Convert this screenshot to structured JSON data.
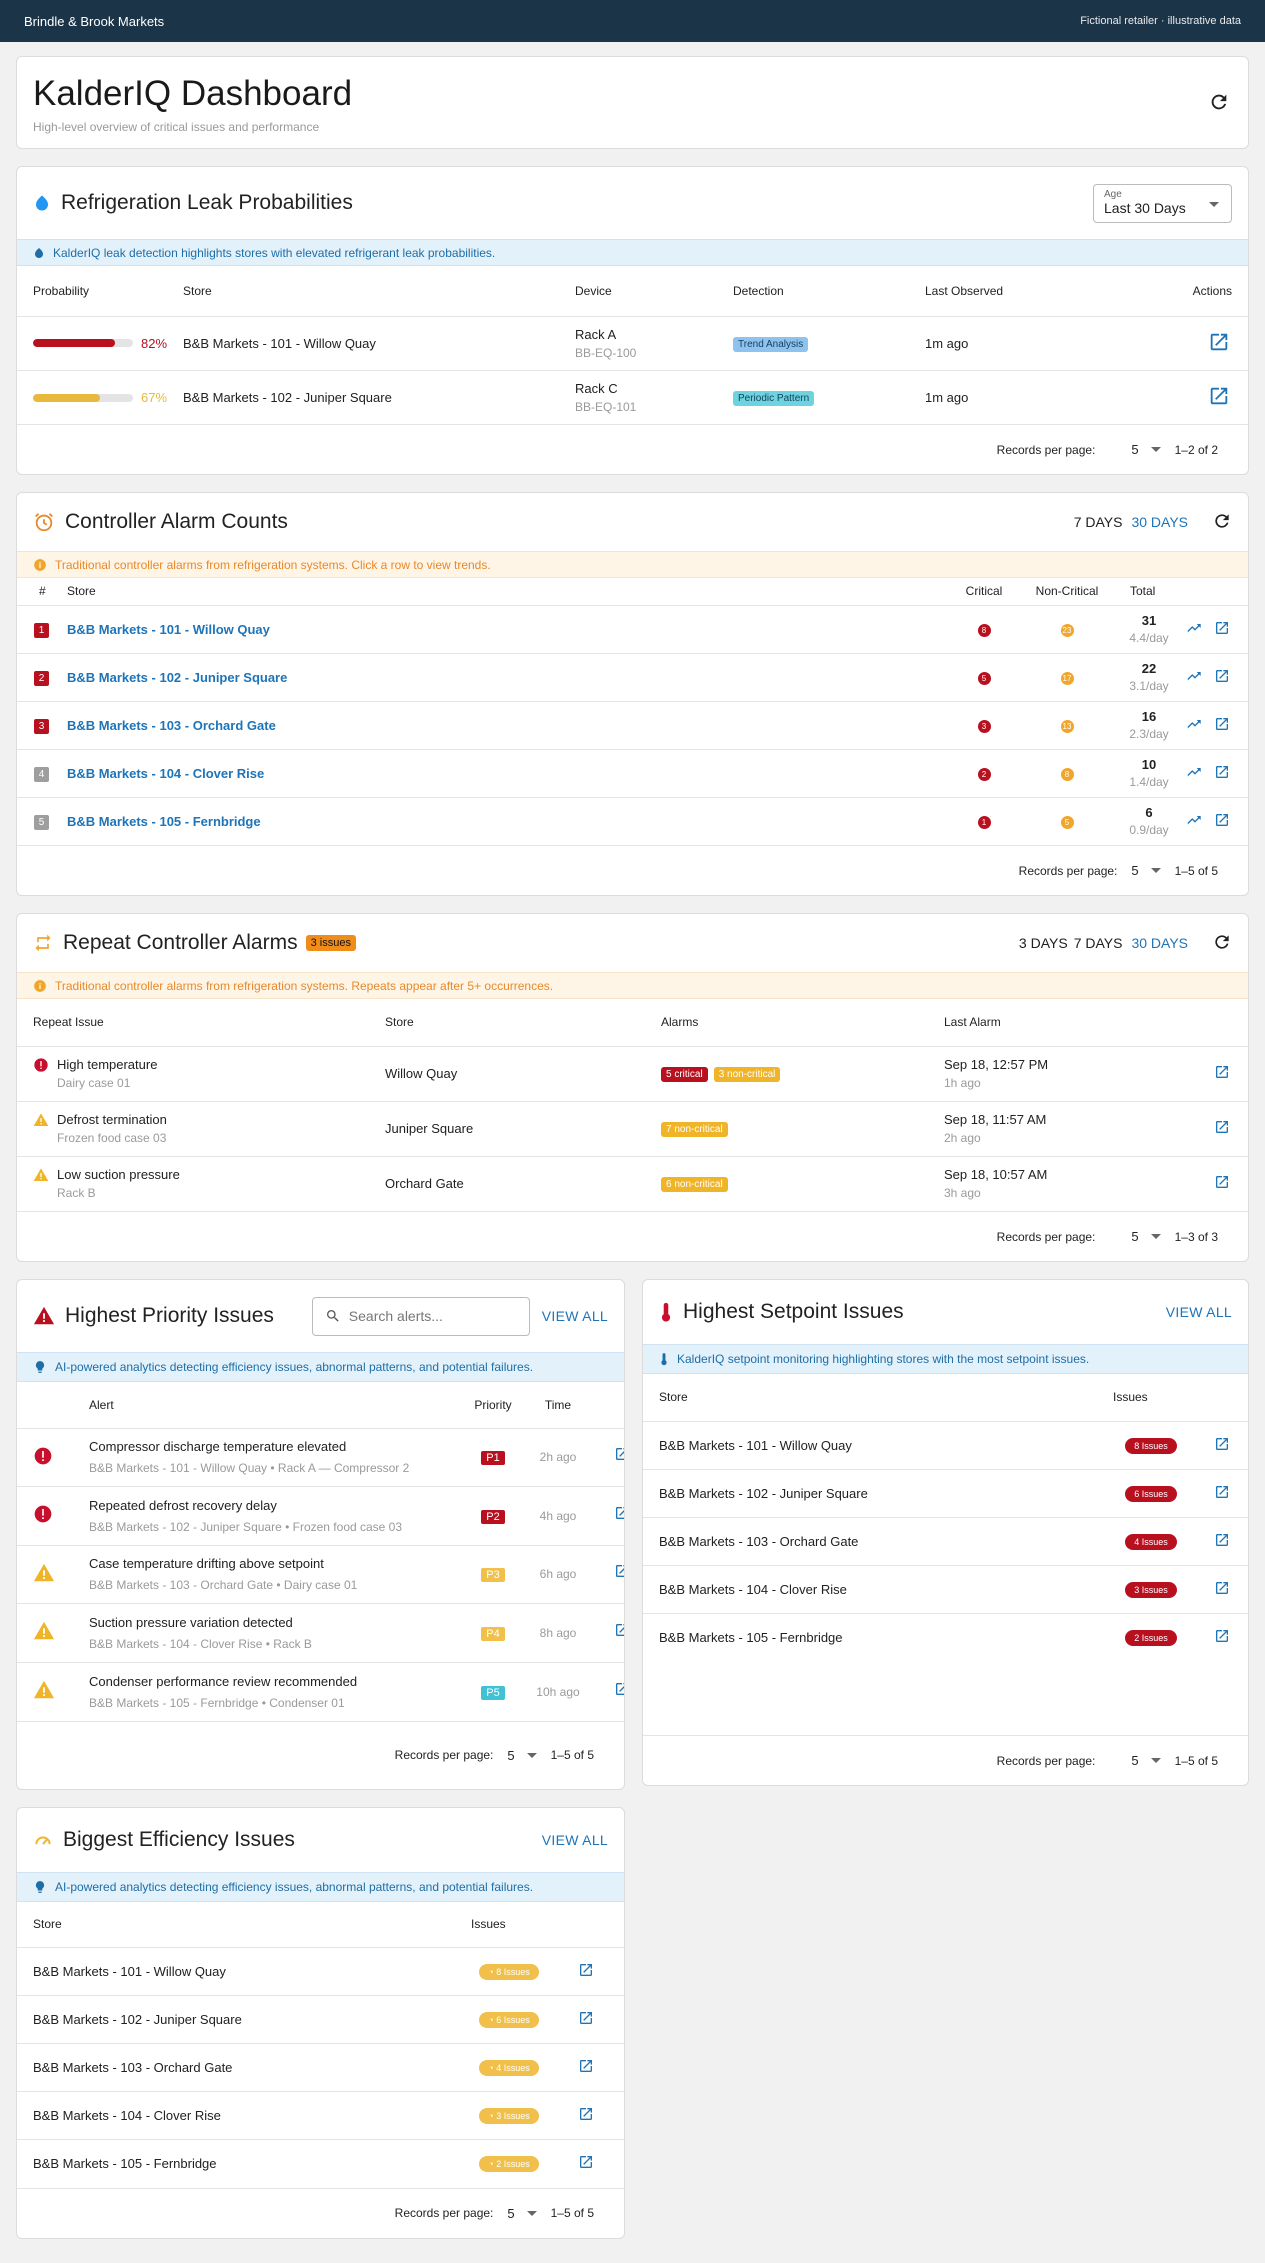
{
  "topbar": {
    "brand": "Brindle & Brook Markets",
    "note": "Fictional retailer · illustrative data"
  },
  "dashboard": {
    "title": "KalderIQ Dashboard",
    "subtitle": "High-level overview of critical issues and performance"
  },
  "leak": {
    "title": "Refrigeration Leak Probabilities",
    "age_label": "Age",
    "age_value": "Last 30 Days",
    "banner": "KalderIQ leak detection highlights stores with elevated refrigerant leak probabilities.",
    "headers": [
      "Probability",
      "Store",
      "Device",
      "Detection",
      "Last Observed",
      "Actions"
    ],
    "rows": [
      {
        "prob": "82%",
        "prob_value": 82,
        "color": "#b8101f",
        "store": "B&B Markets - 101 - Willow Quay",
        "device": "Rack A",
        "device_id": "BB-EQ-100",
        "detection": "Trend Analysis",
        "det_color": "#8dc3ee",
        "observed": "1m ago"
      },
      {
        "prob": "67%",
        "prob_value": 67,
        "color": "#e8b93d",
        "store": "B&B Markets - 102 - Juniper Square",
        "device": "Rack C",
        "device_id": "BB-EQ-101",
        "detection": "Periodic Pattern",
        "det_color": "#6dd3de",
        "observed": "1m ago"
      }
    ],
    "footer": {
      "label": "Records per page:",
      "per": "5",
      "range": "1–2 of 2"
    }
  },
  "alarm": {
    "title": "Controller Alarm Counts",
    "days7": "7 DAYS",
    "days30": "30 DAYS",
    "banner": "Traditional controller alarms from refrigeration systems. Click a row to view trends.",
    "headers": [
      "#",
      "Store",
      "Critical",
      "Non-Critical",
      "Total"
    ],
    "rows": [
      {
        "rank": "1",
        "rank_color": "#b8101f",
        "store": "B&B Markets - 101 - Willow Quay",
        "crit": "8",
        "noncrit": "23",
        "total": "31",
        "perday": "4.4/day"
      },
      {
        "rank": "2",
        "rank_color": "#b8101f",
        "store": "B&B Markets - 102 - Juniper Square",
        "crit": "5",
        "noncrit": "17",
        "total": "22",
        "perday": "3.1/day"
      },
      {
        "rank": "3",
        "rank_color": "#b8101f",
        "store": "B&B Markets - 103 - Orchard Gate",
        "crit": "3",
        "noncrit": "13",
        "total": "16",
        "perday": "2.3/day"
      },
      {
        "rank": "4",
        "rank_color": "#9e9e9e",
        "store": "B&B Markets - 104 - Clover Rise",
        "crit": "2",
        "noncrit": "8",
        "total": "10",
        "perday": "1.4/day"
      },
      {
        "rank": "5",
        "rank_color": "#9e9e9e",
        "store": "B&B Markets - 105 - Fernbridge",
        "crit": "1",
        "noncrit": "5",
        "total": "6",
        "perday": "0.9/day"
      }
    ],
    "footer": {
      "label": "Records per page:",
      "per": "5",
      "range": "1–5 of 5"
    }
  },
  "repeat": {
    "title": "Repeat Controller Alarms",
    "badge": "3 issues",
    "days3": "3 DAYS",
    "days7": "7 DAYS",
    "days30": "30 DAYS",
    "banner": "Traditional controller alarms from refrigeration systems. Repeats appear after 5+ occurrences.",
    "headers": [
      "Repeat Issue",
      "Store",
      "Alarms",
      "Last Alarm"
    ],
    "rows": [
      {
        "icon": "error",
        "issue": "High temperature",
        "sub": "Dairy case 01",
        "store": "Willow Quay",
        "tags": [
          {
            "t": "5 critical",
            "c": "#b8101f"
          },
          {
            "t": "3 non-critical",
            "c": "#f0b429"
          }
        ],
        "date": "Sep 18, 12:57 PM",
        "ago": "1h ago"
      },
      {
        "icon": "warn",
        "issue": "Defrost termination",
        "sub": "Frozen food case 03",
        "store": "Juniper Square",
        "tags": [
          {
            "t": "7 non-critical",
            "c": "#f0b429"
          }
        ],
        "date": "Sep 18, 11:57 AM",
        "ago": "2h ago"
      },
      {
        "icon": "warn",
        "issue": "Low suction pressure",
        "sub": "Rack B",
        "store": "Orchard Gate",
        "tags": [
          {
            "t": "6 non-critical",
            "c": "#f0b429"
          }
        ],
        "date": "Sep 18, 10:57 AM",
        "ago": "3h ago"
      }
    ],
    "footer": {
      "label": "Records per page:",
      "per": "5",
      "range": "1–3 of 3"
    }
  },
  "priority": {
    "title": "Highest Priority Issues",
    "search_placeholder": "Search alerts...",
    "viewall": "VIEW ALL",
    "banner": "AI-powered analytics detecting efficiency issues, abnormal patterns, and potential failures.",
    "headers": [
      "Alert",
      "Priority",
      "Time"
    ],
    "rows": [
      {
        "icon": "error",
        "alert": "Compressor discharge temperature elevated",
        "sub": "B&B Markets - 101 - Willow Quay • Rack A — Compressor 2",
        "prio": "P1",
        "pc": "#b8101f",
        "time": "2h ago"
      },
      {
        "icon": "error",
        "alert": "Repeated defrost recovery delay",
        "sub": "B&B Markets - 102 - Juniper Square • Frozen food case 03",
        "prio": "P2",
        "pc": "#b8101f",
        "time": "4h ago"
      },
      {
        "icon": "warn",
        "alert": "Case temperature drifting above setpoint",
        "sub": "B&B Markets - 103 - Orchard Gate • Dairy case 01",
        "prio": "P3",
        "pc": "#f0c04a",
        "time": "6h ago"
      },
      {
        "icon": "warn",
        "alert": "Suction pressure variation detected",
        "sub": "B&B Markets - 104 - Clover Rise • Rack B",
        "prio": "P4",
        "pc": "#f0c04a",
        "time": "8h ago"
      },
      {
        "icon": "warn",
        "alert": "Condenser performance review recommended",
        "sub": "B&B Markets - 105 - Fernbridge • Condenser 01",
        "prio": "P5",
        "pc": "#3fc1d6",
        "time": "10h ago"
      }
    ],
    "footer": {
      "label": "Records per page:",
      "per": "5",
      "range": "1–5 of 5"
    }
  },
  "setpoint": {
    "title": "Highest Setpoint Issues",
    "viewall": "VIEW ALL",
    "banner": "KalderIQ setpoint monitoring highlighting stores with the most setpoint issues.",
    "headers": [
      "Store",
      "Issues"
    ],
    "rows": [
      {
        "store": "B&B Markets - 101 - Willow Quay",
        "issues": "8 Issues"
      },
      {
        "store": "B&B Markets - 102 - Juniper Square",
        "issues": "6 Issues"
      },
      {
        "store": "B&B Markets - 103 - Orchard Gate",
        "issues": "4 Issues"
      },
      {
        "store": "B&B Markets - 104 - Clover Rise",
        "issues": "3 Issues"
      },
      {
        "store": "B&B Markets - 105 - Fernbridge",
        "issues": "2 Issues"
      }
    ],
    "footer": {
      "label": "Records per page:",
      "per": "5",
      "range": "1–5 of 5"
    }
  },
  "efficiency": {
    "title": "Biggest Efficiency Issues",
    "viewall": "VIEW ALL",
    "banner": "AI-powered analytics detecting efficiency issues, abnormal patterns, and potential failures.",
    "headers": [
      "Store",
      "Issues"
    ],
    "rows": [
      {
        "store": "B&B Markets - 101 - Willow Quay",
        "issues": "8 Issues"
      },
      {
        "store": "B&B Markets - 102 - Juniper Square",
        "issues": "6 Issues"
      },
      {
        "store": "B&B Markets - 103 - Orchard Gate",
        "issues": "4 Issues"
      },
      {
        "store": "B&B Markets - 104 - Clover Rise",
        "issues": "3 Issues"
      },
      {
        "store": "B&B Markets - 105 - Fernbridge",
        "issues": "2 Issues"
      }
    ],
    "footer": {
      "label": "Records per page:",
      "per": "5",
      "range": "1–5 of 5"
    }
  }
}
